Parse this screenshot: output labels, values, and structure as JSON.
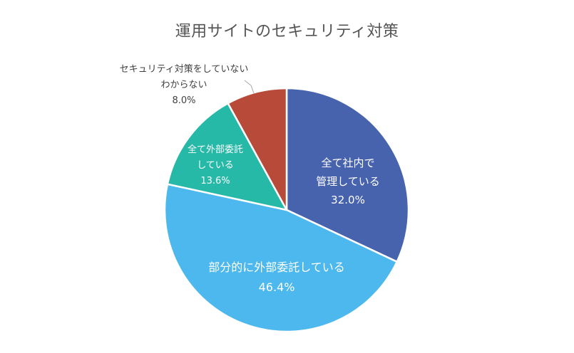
{
  "chart_data": {
    "type": "pie",
    "title": "運用サイトのセキュリティ対策",
    "start_angle_deg": 0,
    "direction": "clockwise",
    "slices": [
      {
        "lines": [
          "全て社内で",
          "管理している"
        ],
        "value": 32.0,
        "value_label": "32.0%",
        "color": "#4863AE",
        "label_color": "#ffffff"
      },
      {
        "lines": [
          "部分的に外部委託している"
        ],
        "value": 46.4,
        "value_label": "46.4%",
        "color": "#4CB8EE",
        "label_color": "#ffffff"
      },
      {
        "lines": [
          "全て外部委託",
          "している"
        ],
        "value": 13.6,
        "value_label": "13.6%",
        "color": "#26B9A8",
        "label_color": "#ffffff"
      },
      {
        "lines": [
          "セキュリティ対策をしていない",
          "わからない"
        ],
        "value": 8.0,
        "value_label": "8.0%",
        "color": "#B84A39",
        "label_color": "#404040"
      }
    ]
  }
}
